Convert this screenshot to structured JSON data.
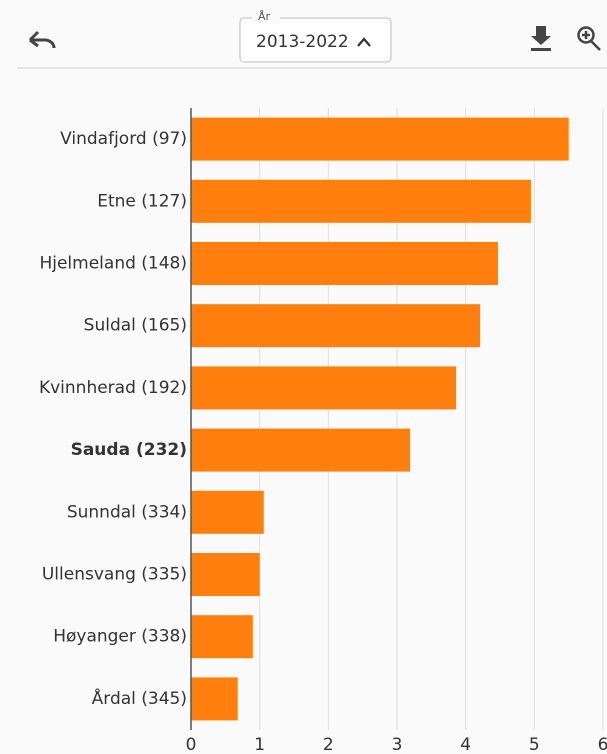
{
  "toolbar": {
    "label": "År",
    "value": "2013-2022"
  },
  "chart_data": {
    "type": "barh",
    "categories": [
      "Vindafjord (97)",
      "Etne (127)",
      "Hjelmeland (148)",
      "Suldal (165)",
      "Kvinnherad (192)",
      "Sauda (232)",
      "Sunndal (334)",
      "Ullensvang (335)",
      "Høyanger (338)",
      "Årdal (345)"
    ],
    "values": [
      5.5,
      4.95,
      4.47,
      4.21,
      3.86,
      3.19,
      1.06,
      1.0,
      0.9,
      0.68
    ],
    "color": "#ff7f0e",
    "highlight_index": 5,
    "xlim": [
      0,
      6
    ],
    "xticks": [
      0,
      1,
      2,
      3,
      4,
      5,
      6
    ],
    "grid": true
  }
}
